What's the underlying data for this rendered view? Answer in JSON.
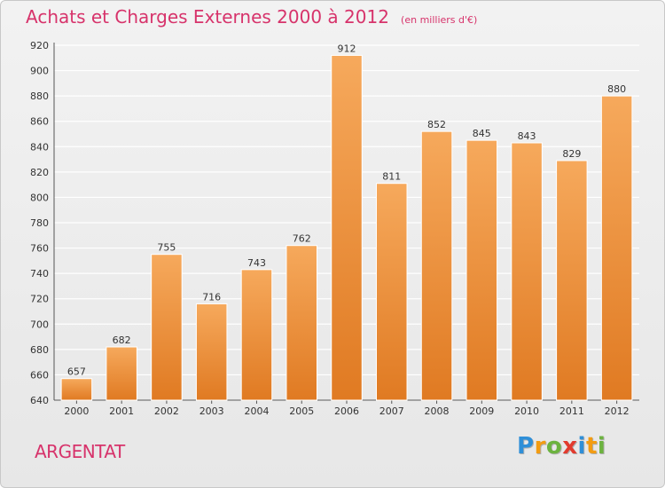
{
  "header": {
    "title": "Achats et Charges Externes 2000 à 2012",
    "unit": "(en milliers d'€)"
  },
  "footer": {
    "commune": "ARGENTAT",
    "brand": "Proxiti",
    "brand_letters": [
      {
        "ch": "P",
        "color": "#2f8fd8"
      },
      {
        "ch": "r",
        "color": "#f39c12"
      },
      {
        "ch": "o",
        "color": "#6cb33f"
      },
      {
        "ch": "x",
        "color": "#e23b2e"
      },
      {
        "ch": "i",
        "color": "#2f8fd8"
      },
      {
        "ch": "t",
        "color": "#f39c12"
      },
      {
        "ch": "i",
        "color": "#6cb33f"
      }
    ]
  },
  "colors": {
    "accent": "#d7336b",
    "bar_light": "#f6a95c",
    "bar_dark": "#e07a22",
    "gridline": "#ffffff"
  },
  "chart_data": {
    "type": "bar",
    "categories": [
      "2000",
      "2001",
      "2002",
      "2003",
      "2004",
      "2005",
      "2006",
      "2007",
      "2008",
      "2009",
      "2010",
      "2011",
      "2012"
    ],
    "values": [
      657,
      682,
      755,
      716,
      743,
      762,
      912,
      811,
      852,
      845,
      843,
      829,
      880
    ],
    "ylim": [
      640,
      920
    ],
    "yticks": [
      640,
      660,
      680,
      700,
      720,
      740,
      760,
      780,
      800,
      820,
      840,
      860,
      880,
      900,
      920
    ],
    "grid": true,
    "legend": "none"
  }
}
